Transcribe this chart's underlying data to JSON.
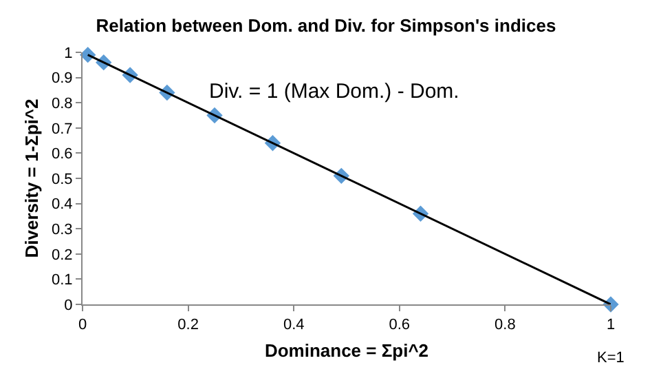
{
  "chart_data": {
    "type": "scatter",
    "title": "Relation between Dom. and Div. for Simpson's indices",
    "xlabel": "Dominance = Σpi^2",
    "ylabel": "Diversity = 1-Σpi^2",
    "x": [
      0.01,
      0.04,
      0.09,
      0.16,
      0.25,
      0.36,
      0.49,
      0.64,
      1
    ],
    "series": [
      {
        "color": "#5b9bd5",
        "marker": "diamond",
        "values": [
          0.99,
          0.96,
          0.91,
          0.84,
          0.75,
          0.64,
          0.51,
          0.36,
          0
        ]
      },
      {
        "type": "line",
        "color": "#000000",
        "x": [
          0.01,
          1
        ],
        "values": [
          0.99,
          0
        ]
      }
    ],
    "annotations": [
      "Div. = 1 (Max Dom.) - Dom.",
      "K=1"
    ],
    "xlim": [
      0,
      1
    ],
    "xticks": [
      0,
      0.2,
      0.4,
      0.6,
      0.8,
      1
    ],
    "ylim": [
      0,
      1
    ],
    "yticks": [
      0,
      0.1,
      0.2,
      0.3,
      0.4,
      0.5,
      0.6,
      0.7,
      0.8,
      0.9,
      1
    ],
    "grid": false,
    "legend": false
  }
}
